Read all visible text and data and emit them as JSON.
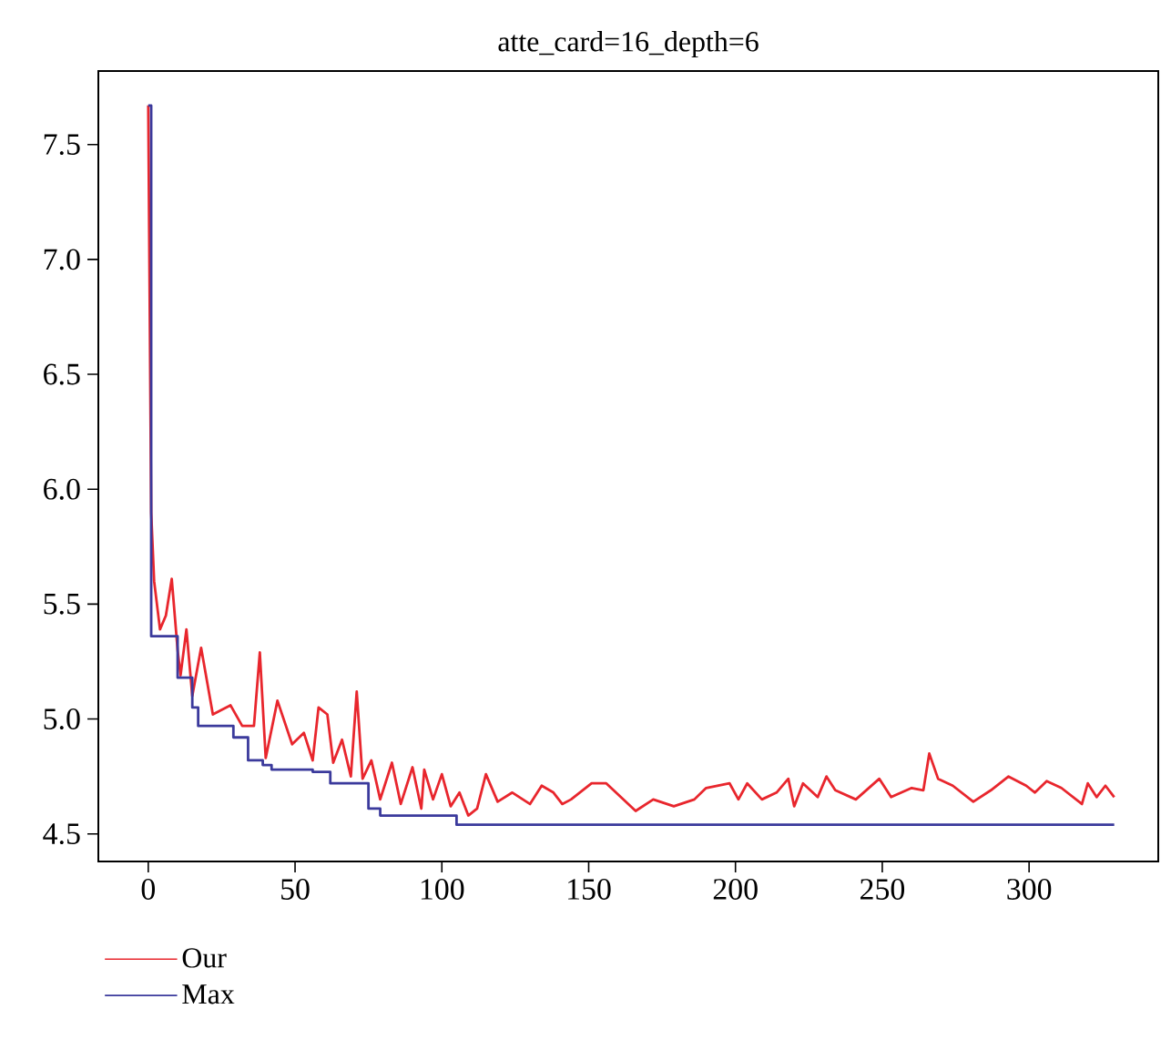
{
  "chart_data": {
    "type": "line",
    "title": "atte_card=16_depth=6",
    "xlim": [
      -17,
      344
    ],
    "ylim": [
      4.38,
      7.82
    ],
    "xticks": [
      0,
      50,
      100,
      150,
      200,
      250,
      300
    ],
    "yticks": [
      4.5,
      {
        "value": 5,
        "label": "5.0"
      },
      5.5,
      {
        "value": 6,
        "label": "6.0"
      },
      6.5,
      {
        "value": 7,
        "label": "7.0"
      },
      7.5
    ],
    "legend": "bottom left",
    "grid": false,
    "series": [
      {
        "name": "Our",
        "color": "#e8262d",
        "x": [
          0,
          1,
          2,
          4,
          6,
          8,
          10,
          11,
          13,
          15,
          18,
          22,
          28,
          32,
          36,
          38,
          40,
          44,
          49,
          53,
          56,
          58,
          61,
          63,
          66,
          69,
          71,
          73,
          76,
          79,
          83,
          86,
          90,
          93,
          94,
          97,
          100,
          103,
          106,
          109,
          112,
          115,
          119,
          124,
          130,
          134,
          138,
          141,
          144,
          151,
          156,
          166,
          172,
          179,
          186,
          190,
          198,
          201,
          204,
          209,
          214,
          218,
          220,
          223,
          228,
          231,
          234,
          241,
          249,
          253,
          260,
          264,
          266,
          269,
          274,
          281,
          287,
          293,
          299,
          302,
          306,
          311,
          318,
          320,
          323,
          326,
          329
        ],
        "values": [
          7.67,
          5.9,
          5.6,
          5.39,
          5.45,
          5.61,
          5.3,
          5.19,
          5.39,
          5.1,
          5.31,
          5.02,
          5.06,
          4.97,
          4.97,
          5.29,
          4.83,
          5.08,
          4.89,
          4.94,
          4.82,
          5.05,
          5.02,
          4.81,
          4.91,
          4.75,
          5.12,
          4.74,
          4.82,
          4.65,
          4.81,
          4.63,
          4.79,
          4.61,
          4.78,
          4.65,
          4.76,
          4.62,
          4.68,
          4.58,
          4.61,
          4.76,
          4.64,
          4.68,
          4.63,
          4.71,
          4.68,
          4.63,
          4.65,
          4.72,
          4.72,
          4.6,
          4.65,
          4.62,
          4.65,
          4.7,
          4.72,
          4.65,
          4.72,
          4.65,
          4.68,
          4.74,
          4.62,
          4.72,
          4.66,
          4.75,
          4.69,
          4.65,
          4.74,
          4.66,
          4.7,
          4.69,
          4.85,
          4.74,
          4.71,
          4.64,
          4.69,
          4.75,
          4.71,
          4.68,
          4.73,
          4.7,
          4.63,
          4.72,
          4.66,
          4.71,
          4.66
        ]
      },
      {
        "name": "Max",
        "type": "step",
        "color": "#3b3a9c",
        "x": [
          0,
          1,
          10,
          15,
          17,
          29,
          34,
          39,
          42,
          56,
          62,
          75,
          79,
          105,
          329
        ],
        "values": [
          7.67,
          5.36,
          5.18,
          5.05,
          4.97,
          4.92,
          4.82,
          4.8,
          4.78,
          4.77,
          4.72,
          4.61,
          4.58,
          4.54,
          4.54
        ]
      }
    ]
  }
}
